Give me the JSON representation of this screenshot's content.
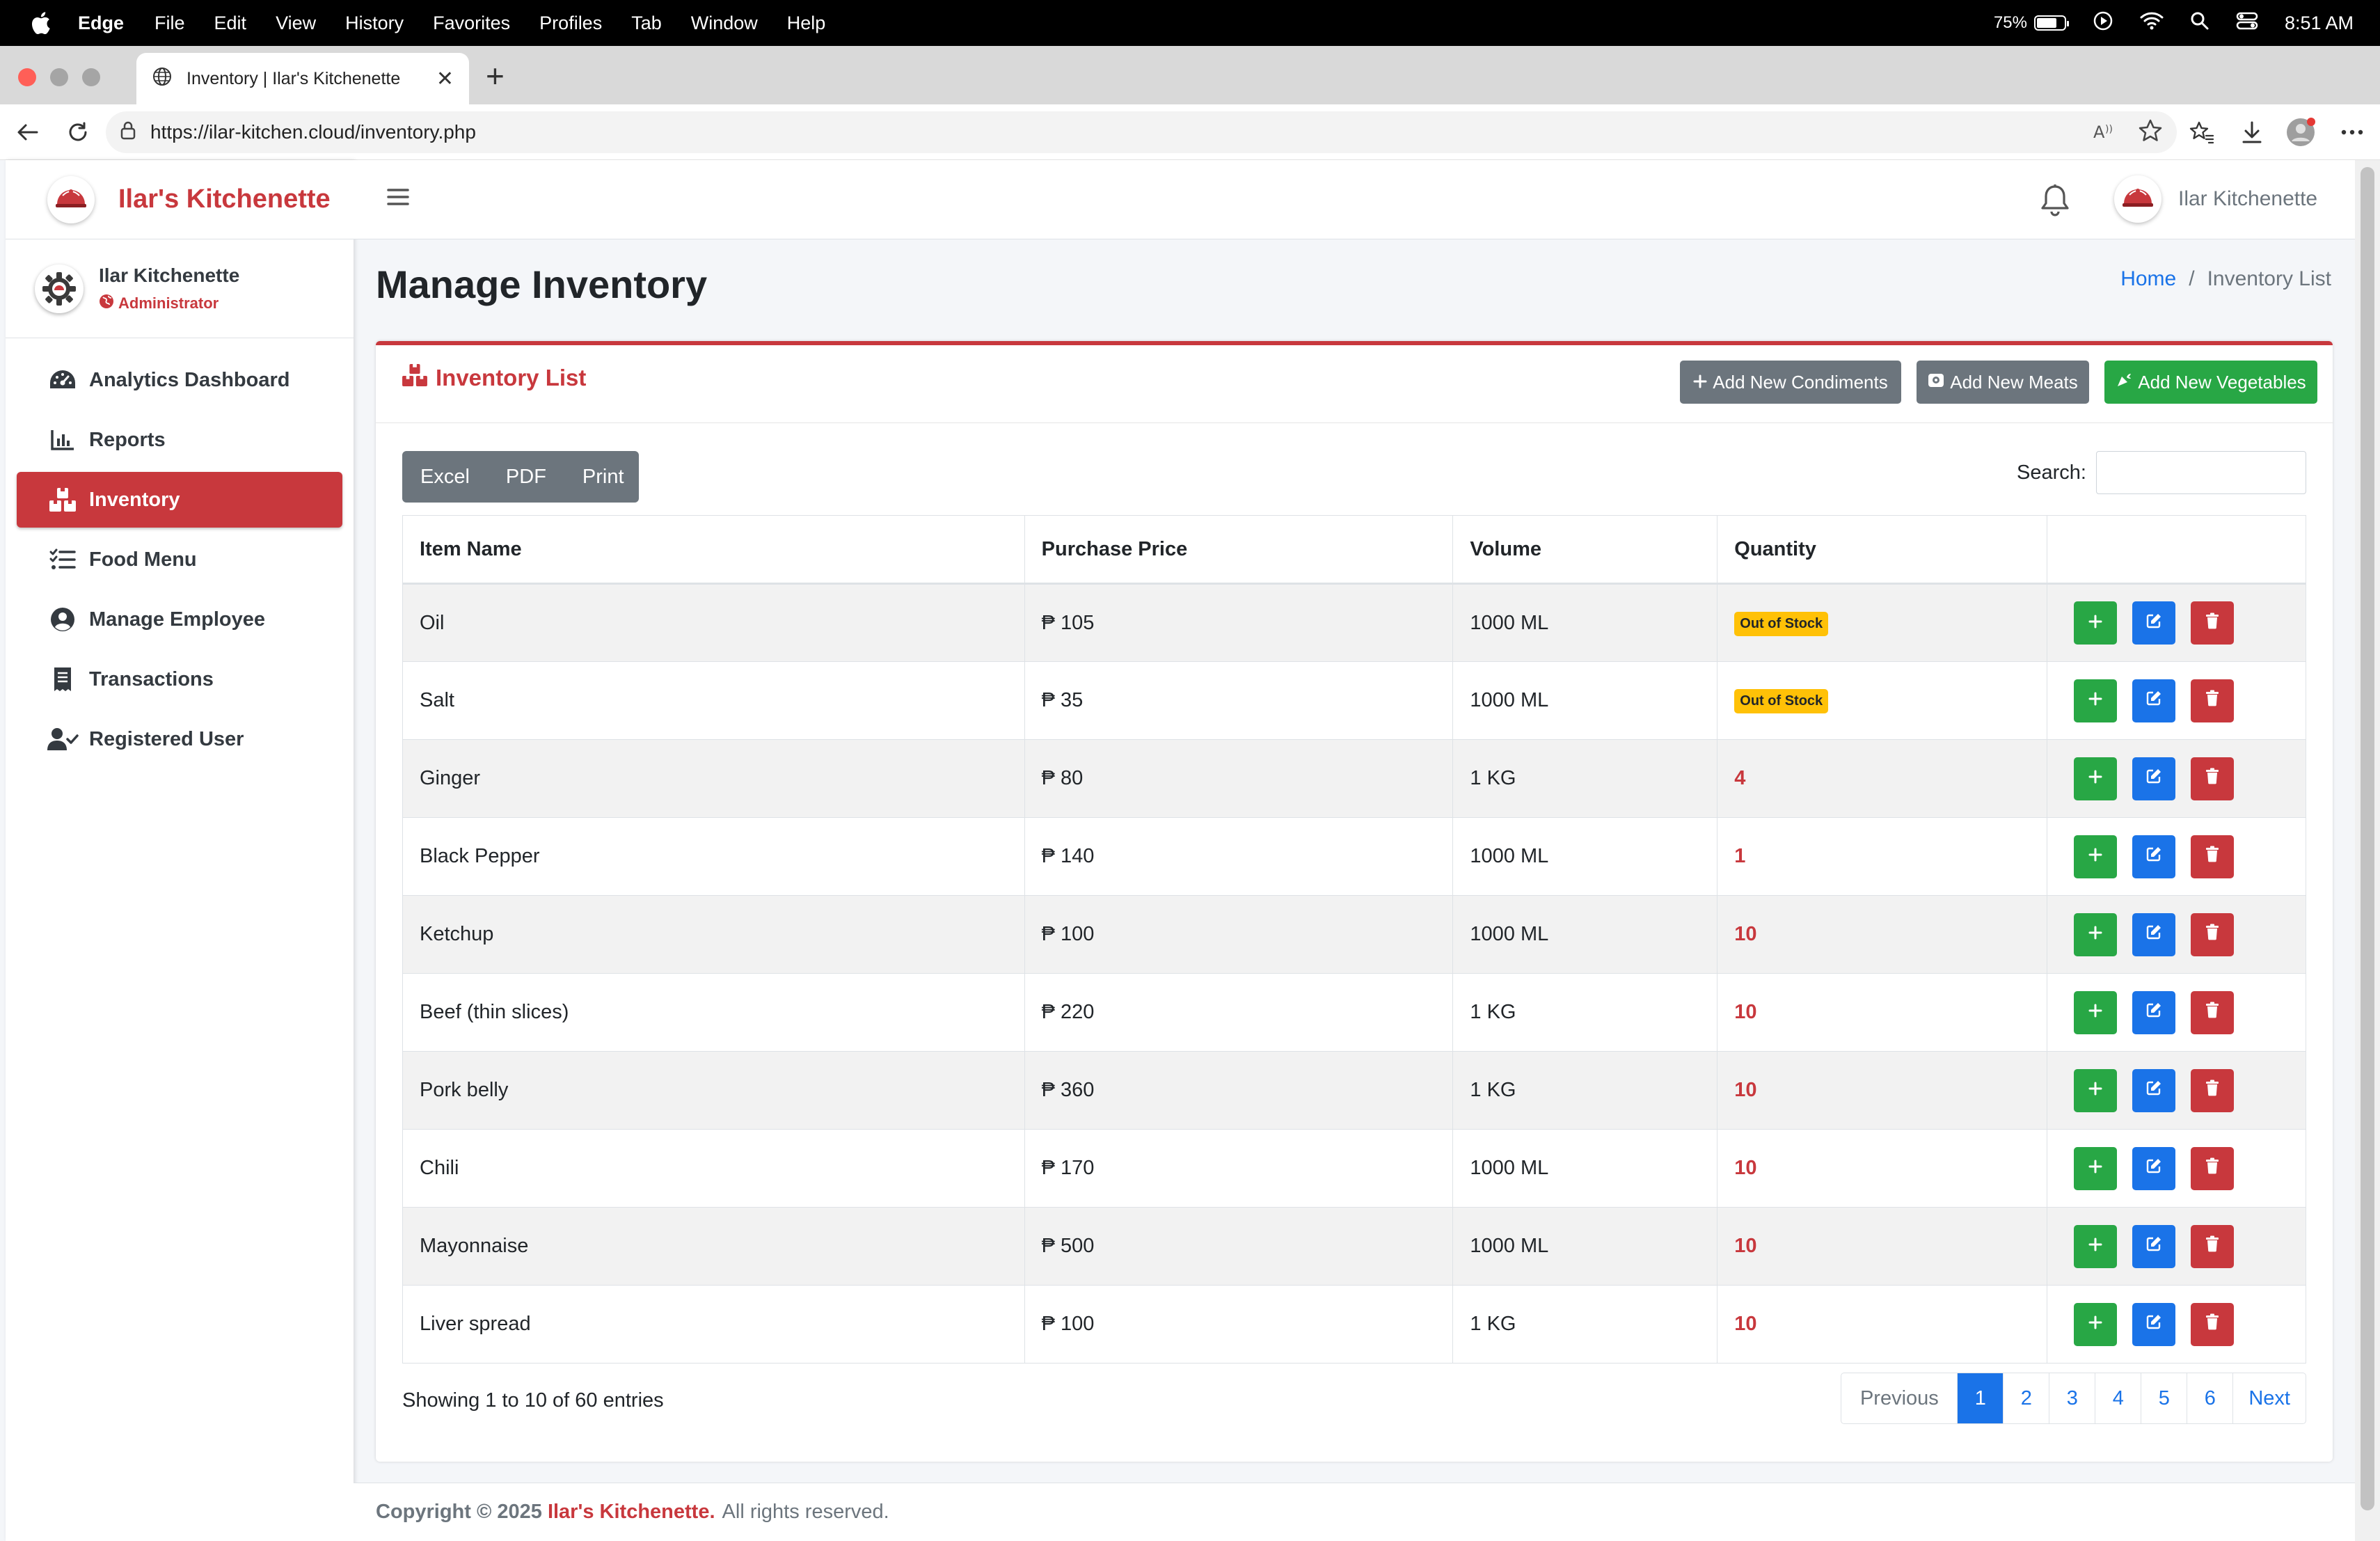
{
  "menubar": {
    "app": "Edge",
    "items": [
      "File",
      "Edit",
      "View",
      "History",
      "Favorites",
      "Profiles",
      "Tab",
      "Window",
      "Help"
    ],
    "battery": "75%",
    "time": "8:51 AM"
  },
  "browser": {
    "tab_title": "Inventory | Ilar's Kitchenette",
    "url": "https://ilar-kitchen.cloud/inventory.php"
  },
  "sidebar": {
    "brand": "Ilar's Kitchenette",
    "user_name": "Ilar Kitchenette",
    "user_role": "Administrator",
    "items": [
      {
        "label": "Analytics Dashboard",
        "icon": "gauge-icon"
      },
      {
        "label": "Reports",
        "icon": "chart-bar-icon"
      },
      {
        "label": "Inventory",
        "icon": "boxes-icon",
        "active": true
      },
      {
        "label": "Food Menu",
        "icon": "list-check-icon"
      },
      {
        "label": "Manage Employee",
        "icon": "user-circle-icon"
      },
      {
        "label": "Transactions",
        "icon": "receipt-icon"
      },
      {
        "label": "Registered User",
        "icon": "user-check-icon"
      }
    ]
  },
  "topbar": {
    "user_name": "Ilar Kitchenette"
  },
  "page": {
    "title": "Manage Inventory",
    "breadcrumb_home": "Home",
    "breadcrumb_sep": "/",
    "breadcrumb_current": "Inventory List"
  },
  "card": {
    "title": "Inventory List",
    "btn_condiments": "Add New Condiments",
    "btn_meats": "Add New Meats",
    "btn_vegetables": "Add New Vegetables",
    "export": {
      "excel": "Excel",
      "pdf": "PDF",
      "print": "Print"
    },
    "search_label": "Search:",
    "search_value": ""
  },
  "table": {
    "headers": {
      "item": "Item Name",
      "price": "Purchase Price",
      "volume": "Volume",
      "quantity": "Quantity"
    },
    "rows": [
      {
        "item": "Oil",
        "price": "₱ 105",
        "volume": "1000 ML",
        "quantity": "Out of Stock",
        "out": true
      },
      {
        "item": "Salt",
        "price": "₱ 35",
        "volume": "1000 ML",
        "quantity": "Out of Stock",
        "out": true
      },
      {
        "item": "Ginger",
        "price": "₱ 80",
        "volume": "1 KG",
        "quantity": "4",
        "out": false
      },
      {
        "item": "Black Pepper",
        "price": "₱ 140",
        "volume": "1000 ML",
        "quantity": "1",
        "out": false
      },
      {
        "item": "Ketchup",
        "price": "₱ 100",
        "volume": "1000 ML",
        "quantity": "10",
        "out": false
      },
      {
        "item": "Beef (thin slices)",
        "price": "₱ 220",
        "volume": "1 KG",
        "quantity": "10",
        "out": false
      },
      {
        "item": "Pork belly",
        "price": "₱ 360",
        "volume": "1 KG",
        "quantity": "10",
        "out": false
      },
      {
        "item": "Chili",
        "price": "₱ 170",
        "volume": "1000 ML",
        "quantity": "10",
        "out": false
      },
      {
        "item": "Mayonnaise",
        "price": "₱ 500",
        "volume": "1000 ML",
        "quantity": "10",
        "out": false
      },
      {
        "item": "Liver spread",
        "price": "₱ 100",
        "volume": "1 KG",
        "quantity": "10",
        "out": false
      }
    ]
  },
  "pagination": {
    "showing": "Showing 1 to 10 of 60 entries",
    "previous": "Previous",
    "pages": [
      "1",
      "2",
      "3",
      "4",
      "5",
      "6"
    ],
    "active_page": "1",
    "next": "Next"
  },
  "footer": {
    "copyright": "Copyright © 2025",
    "brand": "Ilar's Kitchenette.",
    "rights": "All rights reserved."
  },
  "colors": {
    "brand_red": "#c8383d",
    "link_blue": "#1a73e8",
    "success_green": "#28a745",
    "warning_yellow": "#ffc107",
    "secondary_gray": "#6c757d"
  }
}
